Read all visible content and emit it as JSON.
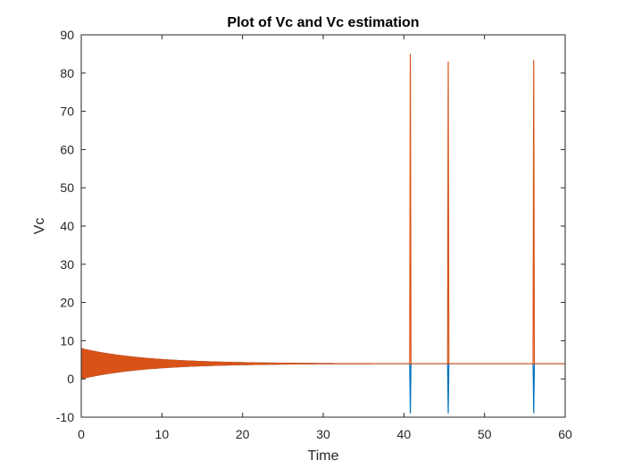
{
  "chart_data": {
    "type": "line",
    "title": "Plot of Vc and Vc estimation",
    "xlabel": "Time",
    "ylabel": "Vc",
    "xlim": [
      0,
      60
    ],
    "ylim": [
      -10,
      90
    ],
    "xticks": [
      "0",
      "10",
      "20",
      "30",
      "40",
      "50",
      "60"
    ],
    "yticks": [
      "-10",
      "0",
      "10",
      "20",
      "30",
      "40",
      "50",
      "60",
      "70",
      "80",
      "90"
    ],
    "grid": false,
    "legend": "none",
    "series": [
      {
        "color": "#0072BD",
        "steady_value": 4,
        "envelope": {
          "start_amplitude": 4,
          "decay_tau": 8
        },
        "spikes": [
          {
            "x": 40.8,
            "y": -9
          },
          {
            "x": 45.5,
            "y": -9
          },
          {
            "x": 56.1,
            "y": -9
          }
        ]
      },
      {
        "color": "#D95319",
        "steady_value": 4,
        "envelope": {
          "start_amplitude": 4,
          "decay_tau": 8
        },
        "spikes": [
          {
            "x": 40.8,
            "y": 85
          },
          {
            "x": 45.5,
            "y": 83
          },
          {
            "x": 56.1,
            "y": 83.5
          }
        ]
      }
    ]
  }
}
